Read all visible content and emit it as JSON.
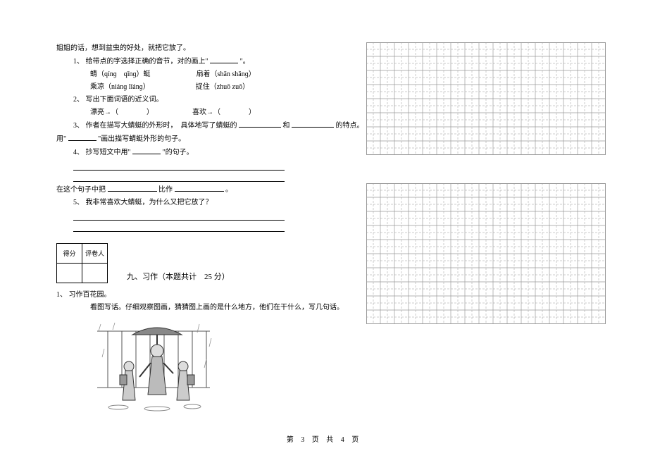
{
  "intro": "姐姐的话，想到益虫的好处，就把它放了。",
  "q1": {
    "num": "1、",
    "text": "给带点的字选择正确的音节，对的画上\"",
    "text_end": "\"。",
    "row1a": "蜻（qínɡ　qǐnɡ）蜓",
    "row1b": "扇着（shān shǎnɡ）",
    "row2a": "乘凉（niánɡ lǐánɡ）",
    "row2b": "捉住（zhuō zuǒ）"
  },
  "q2": {
    "num": "2、",
    "text": "写出下面词语的近义词。",
    "row_a": "漂亮→（　　　　）",
    "row_b": "喜欢→（　　　　）"
  },
  "q3": {
    "num": "3、",
    "prefix": "作者在描写大蜻蜓的外形时，　具体地写了蜻蜓的",
    "mid": "和",
    "suffix": "的特点。",
    "line2a": "用\"",
    "line2b": "\"画出描写蜻蜓外形的句子。"
  },
  "q4": {
    "num": "4、",
    "text_a": "抄写短文中用\"",
    "text_b": "\"的句子。",
    "compare_a": "在这个句子中把",
    "compare_b": "比作",
    "compare_c": "。"
  },
  "q5": {
    "num": "5、",
    "text": "我非常喜欢大蜻蜓，为什么又把它放了？"
  },
  "score": {
    "col1": "得分",
    "col2": "评卷人"
  },
  "section9": {
    "title": "九、习作（本题共计　25 分）"
  },
  "essay": {
    "num": "1、",
    "label": "习作百花园。",
    "instruction": "看图写话。仔细观察图画，猜猜图上画的是什么地方，他们在干什么，写几句话。"
  },
  "grid": {
    "rows1": 8,
    "rows2": 10,
    "cols": 17,
    "cell": 20,
    "stroke": "#9a9a9a",
    "dash": "3,2"
  },
  "footer": "第 3 页 共 4 页"
}
